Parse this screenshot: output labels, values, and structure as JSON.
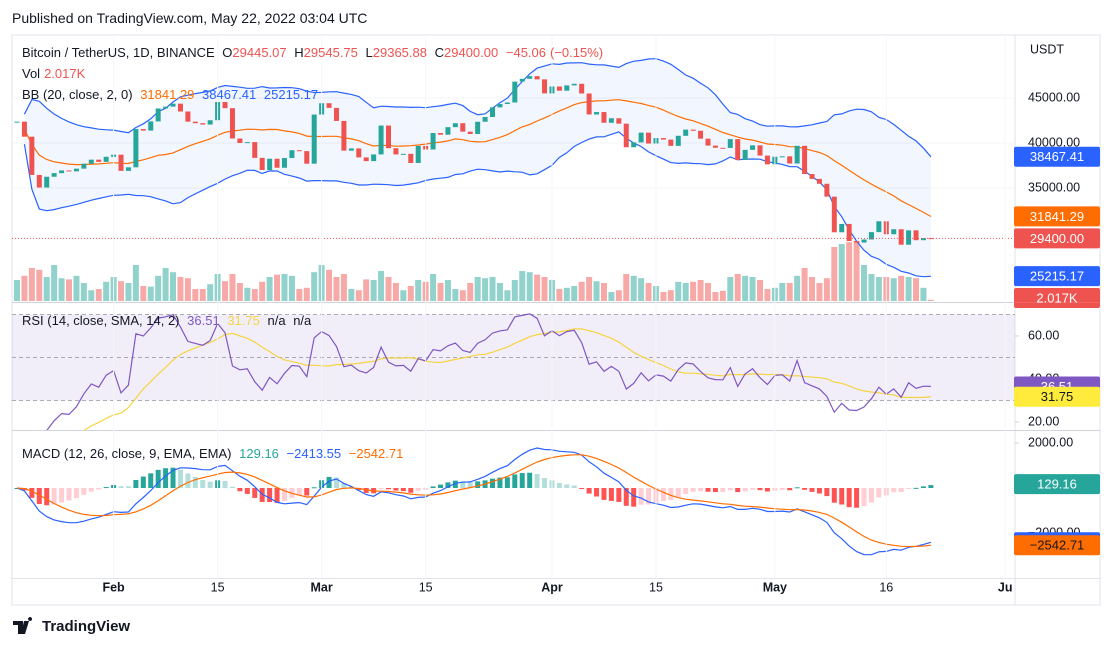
{
  "header": {
    "published": "Published on TradingView.com, May 22, 2022 03:04 UTC"
  },
  "footer": {
    "brand": "TradingView"
  },
  "chart_data": {
    "type": "candlestick",
    "symbol": "Bitcoin / TetherUS, 1D, BINANCE",
    "ohlc_labels": [
      "O",
      "H",
      "L",
      "C"
    ],
    "open": 29445.07,
    "high": 29545.75,
    "low": 29365.88,
    "close": {
      "value": 29400,
      "label": "29400.00"
    },
    "change": {
      "value": -45.06,
      "label": "−45.06"
    },
    "change_pct": {
      "value": -0.15,
      "label": "(−0.15%)"
    },
    "currency": "USDT",
    "up_color": "#26a69a",
    "down_color": "#ef5350",
    "closes": [
      42370,
      40700,
      36450,
      35050,
      36250,
      36650,
      36950,
      36850,
      37150,
      37700,
      38150,
      37900,
      38470,
      38700,
      36900,
      37300,
      41550,
      41380,
      42400,
      43840,
      44040,
      44370,
      43500,
      42370,
      42200,
      42050,
      42530,
      44550,
      43870,
      40500,
      40000,
      40100,
      38350,
      37000,
      38250,
      37250,
      38330,
      39200,
      39100,
      37700,
      43160,
      44420,
      43900,
      42450,
      39150,
      39400,
      38400,
      37990,
      38730,
      41940,
      39420,
      38730,
      38800,
      37780,
      39670,
      39280,
      41110,
      40920,
      41760,
      42200,
      41260,
      41000,
      42360,
      42890,
      43960,
      44330,
      44500,
      46820,
      47130,
      47430,
      47070,
      45510,
      46280,
      45810,
      46400,
      46580,
      45500,
      43170,
      43440,
      42250,
      42750,
      42150,
      39530,
      40070,
      41150,
      39940,
      40550,
      40380,
      39680,
      40800,
      41490,
      41360,
      40480,
      39710,
      39470,
      39450,
      40430,
      38110,
      39240,
      39740,
      38600,
      37630,
      38470,
      38520,
      37720,
      39690,
      36550,
      36010,
      35470,
      34040,
      30080,
      31010,
      29100,
      28940,
      29280,
      30100,
      31300,
      29860,
      30420,
      28700,
      30300,
      29200,
      29430,
      29400
    ],
    "ylim": [
      22556,
      52000
    ],
    "yticks": [
      {
        "value": 35000,
        "label": "35000.00"
      },
      {
        "value": 40000,
        "label": "40000.00"
      },
      {
        "value": 45000,
        "label": "45000.00"
      }
    ],
    "xticks": [
      {
        "value": 13,
        "label": "Feb"
      },
      {
        "value": 27,
        "label": "15"
      },
      {
        "value": 41,
        "label": "Mar"
      },
      {
        "value": 55,
        "label": "15"
      },
      {
        "value": 72,
        "label": "Apr"
      },
      {
        "value": 86,
        "label": "15"
      },
      {
        "value": 102,
        "label": "May"
      },
      {
        "value": 117,
        "label": "16"
      },
      {
        "value": 133,
        "label": "Ju"
      }
    ],
    "volume": {
      "name": "Vol",
      "values": [
        35,
        42,
        55,
        52,
        40,
        60,
        38,
        36,
        42,
        30,
        18,
        20,
        32,
        40,
        33,
        30,
        60,
        25,
        24,
        42,
        55,
        48,
        40,
        38,
        20,
        20,
        28,
        45,
        33,
        45,
        30,
        22,
        20,
        32,
        40,
        44,
        45,
        42,
        20,
        22,
        48,
        60,
        52,
        40,
        45,
        20,
        18,
        36,
        35,
        50,
        40,
        30,
        18,
        25,
        35,
        32,
        45,
        30,
        35,
        20,
        18,
        30,
        40,
        38,
        40,
        30,
        18,
        35,
        50,
        48,
        44,
        40,
        35,
        20,
        22,
        25,
        32,
        40,
        33,
        30,
        15,
        18,
        45,
        42,
        38,
        30,
        25,
        15,
        18,
        32,
        30,
        32,
        35,
        30,
        15,
        17,
        40,
        45,
        42,
        40,
        35,
        20,
        22,
        30,
        30,
        42,
        55,
        40,
        30,
        38,
        90,
        95,
        98,
        100,
        60,
        45,
        40,
        40,
        38,
        42,
        40,
        38,
        22,
        2.017
      ],
      "last_label": {
        "value": 2.017,
        "label": "2.017K"
      }
    },
    "bb": {
      "name": "BB (20, close, 2, 0)",
      "basis": 31841.29,
      "upper": 38467.41,
      "lower": 25215.17,
      "band_color": "#2962ff",
      "basis_color": "#ff6d00"
    },
    "rsi": {
      "name": "RSI (14, close, SMA, 14, 2)",
      "value": 36.51,
      "sma": 31.75,
      "extra": [
        "n/a",
        "n/a"
      ],
      "line_color": "#7e57c2",
      "sma_color": "#f5d442",
      "ylim": [
        17.2,
        74.4
      ],
      "bands": [
        70,
        50,
        30
      ],
      "yticks": [
        {
          "value": 20,
          "label": "20.00"
        },
        {
          "value": 40,
          "label": "40.00"
        },
        {
          "value": 60,
          "label": "60.00"
        }
      ]
    },
    "macd": {
      "name": "MACD (12, 26, close, 9, EMA, EMA)",
      "histogram": 129.16,
      "macd": {
        "value": -2413.55,
        "label": "−2413.55"
      },
      "signal": {
        "value": -2542.71,
        "label": "−2542.71"
      },
      "macd_color": "#2962ff",
      "signal_color": "#ff6d00",
      "ylim": [
        -4000,
        2489
      ],
      "yticks": [
        {
          "value": 2000,
          "label": "2000.00"
        },
        {
          "value": -2000,
          "label": "−2000.00"
        }
      ]
    }
  }
}
